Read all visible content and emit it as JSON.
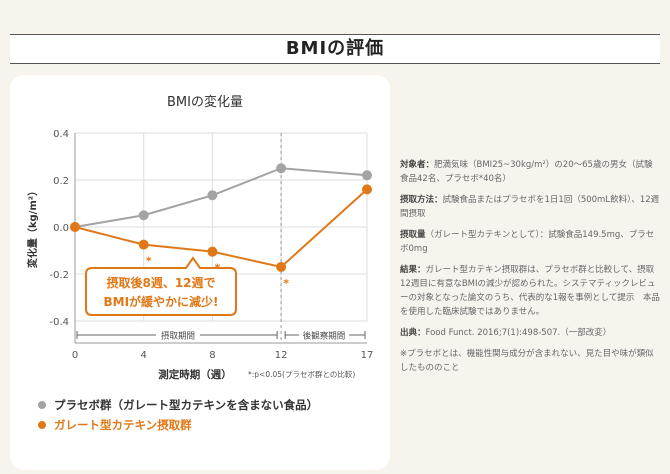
{
  "section_title": "BMIの評価",
  "chart_data": {
    "type": "line",
    "title": "BMIの変化量",
    "ylabel": "変化量（kg/m²）",
    "xlabel": "測定時期（週）",
    "x": [
      0,
      4,
      8,
      12,
      17
    ],
    "ylim": [
      -0.4,
      0.4
    ],
    "yticks": [
      "0.4",
      "0.2",
      "0.0",
      "-0.2",
      "-0.4"
    ],
    "xticks": [
      "0",
      "4",
      "8",
      "12",
      "17"
    ],
    "grid": true,
    "series": [
      {
        "name": "プラセボ群（ガレート型カテキンを含まない食品）",
        "color": "#a3a3a3",
        "values": [
          0.0,
          0.05,
          0.135,
          0.25,
          0.22
        ]
      },
      {
        "name": "ガレート型カテキン摂取群",
        "color": "#e07818",
        "values": [
          0.0,
          -0.075,
          -0.105,
          -0.17,
          0.16
        ]
      }
    ],
    "significance_marks": [
      "*",
      "*",
      "*"
    ],
    "significance_note": "*:p<0.05(プラセボ群との比較)",
    "period_labels": [
      "摂取期間",
      "後観察期間"
    ],
    "callout_lines": [
      "摂取後8週、12週で",
      "BMIが緩やかに減少!"
    ]
  },
  "side_notes": [
    {
      "label": "対象者：",
      "text": "肥満気味（BMI25~30kg/m²）の20〜65歳の男女（試験食品42名、プラセボ*40名）"
    },
    {
      "label": "摂取方法：",
      "text": "試験食品またはプラセボを1日1回（500mL飲料）、12週間摂取"
    },
    {
      "label": "摂取量",
      "text": "（ガレート型カテキンとして）：試験食品149.5mg、プラセボ0mg"
    },
    {
      "label": "結果：",
      "text": "ガレート型カテキン摂取群は、プラセボ群と比較して、摂取12週目に有意なBMIの減少が認められた。システマティックレビューの対象となった論文のうち、代表的な1報を事例として提示　本品を使用した臨床試験ではありません。"
    },
    {
      "label": "出典：",
      "text": "Food Funct. 2016;7(1):498-507.（一部改変）"
    },
    {
      "label": "",
      "text": "※プラセボとは、機能性関与成分が含まれない、見た目や味が類似したもののこと"
    }
  ]
}
